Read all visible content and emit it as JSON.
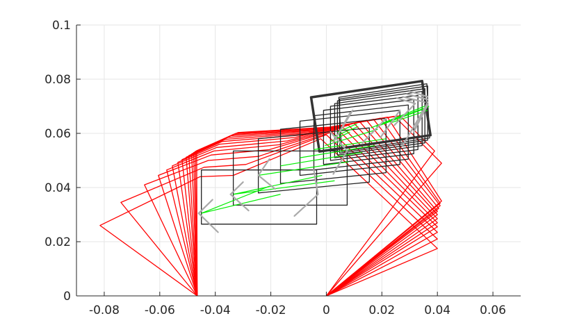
{
  "chart_data": {
    "type": "line",
    "title": "",
    "xlabel": "",
    "ylabel": "",
    "xlim": [
      -0.09,
      0.07
    ],
    "ylim": [
      0,
      0.1
    ],
    "xticks": [
      -0.08,
      -0.06,
      -0.04,
      -0.02,
      0,
      0.02,
      0.04,
      0.06
    ],
    "xtick_labels": [
      "-0.08",
      "-0.06",
      "-0.04",
      "-0.02",
      "0",
      "0.02",
      "0.04",
      "0.06"
    ],
    "yticks": [
      0,
      0.02,
      0.04,
      0.06,
      0.08,
      0.1
    ],
    "ytick_labels": [
      "0",
      "0.02",
      "0.04",
      "0.06",
      "0.08",
      "0.1"
    ],
    "grid": true,
    "colors": {
      "linkage": "#ff0000",
      "box": "#222222",
      "box_final": "#333333",
      "velocity_vector": "#00ee00",
      "direction_marker": "#aaaaaa",
      "axes": "#262626",
      "grid": "#e6e6e6"
    },
    "series": [
      {
        "kind": "linkage",
        "frames": [
          [
            [
              -0.0465,
              0
            ],
            [
              -0.0815,
              0.026
            ],
            [
              -0.0455,
              0.044
            ],
            [
              -0.0335,
              0.0445
            ],
            [
              -0.002,
              0.058
            ],
            [
              0.04,
              0.0175
            ],
            [
              0,
              0
            ]
          ],
          [
            [
              -0.0465,
              0
            ],
            [
              -0.074,
              0.0345
            ],
            [
              -0.044,
              0.0475
            ],
            [
              -0.029,
              0.0485
            ],
            [
              0.0,
              0.0595
            ],
            [
              0.04,
              0.021
            ],
            [
              0,
              0
            ]
          ],
          [
            [
              -0.0465,
              0
            ],
            [
              -0.0655,
              0.041
            ],
            [
              -0.0425,
              0.05
            ],
            [
              -0.0245,
              0.0515
            ],
            [
              0.002,
              0.0605
            ],
            [
              0.04,
              0.0235
            ],
            [
              0,
              0
            ]
          ],
          [
            [
              -0.0465,
              0
            ],
            [
              -0.0605,
              0.0445
            ],
            [
              -0.0415,
              0.052
            ],
            [
              -0.0205,
              0.054
            ],
            [
              0.004,
              0.0615
            ],
            [
              0.04,
              0.0255
            ],
            [
              0,
              0
            ]
          ],
          [
            [
              -0.0465,
              0
            ],
            [
              -0.0575,
              0.0465
            ],
            [
              -0.0405,
              0.0535
            ],
            [
              -0.017,
              0.0558
            ],
            [
              0.006,
              0.0622
            ],
            [
              0.04,
              0.027
            ],
            [
              0,
              0
            ]
          ],
          [
            [
              -0.0465,
              0
            ],
            [
              -0.0555,
              0.048
            ],
            [
              -0.0395,
              0.0548
            ],
            [
              -0.014,
              0.0572
            ],
            [
              0.008,
              0.063
            ],
            [
              0.04,
              0.0285
            ],
            [
              0,
              0
            ]
          ],
          [
            [
              -0.0465,
              0
            ],
            [
              -0.0535,
              0.0493
            ],
            [
              -0.0385,
              0.056
            ],
            [
              -0.0112,
              0.0585
            ],
            [
              0.01,
              0.0637
            ],
            [
              0.04,
              0.03
            ],
            [
              0,
              0
            ]
          ],
          [
            [
              -0.0465,
              0
            ],
            [
              -0.052,
              0.0503
            ],
            [
              -0.0375,
              0.057
            ],
            [
              -0.0088,
              0.0594
            ],
            [
              0.012,
              0.0643
            ],
            [
              0.04,
              0.0312
            ],
            [
              0,
              0
            ]
          ],
          [
            [
              -0.0465,
              0
            ],
            [
              -0.0505,
              0.0512
            ],
            [
              -0.0365,
              0.0578
            ],
            [
              -0.0065,
              0.0601
            ],
            [
              0.0145,
              0.0648
            ],
            [
              0.0405,
              0.0323
            ],
            [
              0,
              0
            ]
          ],
          [
            [
              -0.0465,
              0
            ],
            [
              -0.0495,
              0.0518
            ],
            [
              -0.0355,
              0.0585
            ],
            [
              -0.0045,
              0.0607
            ],
            [
              0.017,
              0.0652
            ],
            [
              0.041,
              0.0333
            ],
            [
              0,
              0
            ]
          ],
          [
            [
              -0.0465,
              0
            ],
            [
              -0.0485,
              0.0524
            ],
            [
              -0.0345,
              0.0591
            ],
            [
              -0.0028,
              0.0612
            ],
            [
              0.0195,
              0.0656
            ],
            [
              0.041,
              0.0342
            ],
            [
              0,
              0
            ]
          ],
          [
            [
              -0.0465,
              0
            ],
            [
              -0.0478,
              0.0529
            ],
            [
              -0.0335,
              0.0596
            ],
            [
              -0.0013,
              0.0616
            ],
            [
              0.022,
              0.066
            ],
            [
              0.0415,
              0.035
            ],
            [
              0,
              0
            ]
          ],
          [
            [
              -0.0465,
              0
            ],
            [
              -0.0472,
              0.0533
            ],
            [
              -0.0325,
              0.06
            ],
            [
              0.0,
              0.062
            ],
            [
              0.0245,
              0.0663
            ],
            [
              0.0415,
              0.049
            ],
            [
              0,
              0
            ]
          ],
          [
            [
              -0.0465,
              0
            ],
            [
              -0.0467,
              0.0536
            ],
            [
              -0.0318,
              0.0603
            ],
            [
              0.001,
              0.0623
            ],
            [
              0.0265,
              0.0665
            ],
            [
              0.039,
              0.0535
            ],
            [
              0,
              0
            ]
          ]
        ]
      },
      {
        "kind": "box",
        "frames": [
          [
            [
              -0.045,
              0.0265
            ],
            [
              -0.0035,
              0.0265
            ],
            [
              -0.0035,
              0.0465
            ],
            [
              -0.045,
              0.0465
            ]
          ],
          [
            [
              -0.0335,
              0.0335
            ],
            [
              0.0075,
              0.0335
            ],
            [
              0.0075,
              0.0535
            ],
            [
              -0.0335,
              0.0535
            ]
          ],
          [
            [
              -0.0245,
              0.038
            ],
            [
              0.0155,
              0.042
            ],
            [
              0.0155,
              0.062
            ],
            [
              -0.0245,
              0.058
            ]
          ],
          [
            [
              -0.0165,
              0.0415
            ],
            [
              0.0215,
              0.0455
            ],
            [
              0.0215,
              0.0655
            ],
            [
              -0.0165,
              0.0615
            ]
          ],
          [
            [
              -0.0095,
              0.0445
            ],
            [
              0.0265,
              0.0485
            ],
            [
              0.0265,
              0.0685
            ],
            [
              -0.0095,
              0.0645
            ]
          ],
          [
            [
              -0.0045,
              0.0465
            ],
            [
              0.0295,
              0.0505
            ],
            [
              0.0295,
              0.0705
            ],
            [
              -0.0045,
              0.0665
            ]
          ],
          [
            [
              -0.001,
              0.0485
            ],
            [
              0.0315,
              0.0525
            ],
            [
              0.0315,
              0.0725
            ],
            [
              -0.001,
              0.0685
            ]
          ],
          [
            [
              0.0015,
              0.05
            ],
            [
              0.033,
              0.054
            ],
            [
              0.033,
              0.074
            ],
            [
              0.0015,
              0.07
            ]
          ],
          [
            [
              0.003,
              0.051
            ],
            [
              0.0345,
              0.0555
            ],
            [
              0.0345,
              0.0755
            ],
            [
              0.003,
              0.071
            ]
          ],
          [
            [
              0.004,
              0.052
            ],
            [
              0.0355,
              0.0565
            ],
            [
              0.0355,
              0.0765
            ],
            [
              0.004,
              0.072
            ]
          ],
          [
            [
              0.0048,
              0.0527
            ],
            [
              0.0365,
              0.0575
            ],
            [
              0.0365,
              0.0775
            ],
            [
              0.0048,
              0.0727
            ]
          ],
          [
            [
              0.0055,
              0.0533
            ],
            [
              0.0372,
              0.0583
            ],
            [
              0.0362,
              0.0783
            ],
            [
              0.0045,
              0.0733
            ]
          ],
          [
            [
              -0.0025,
              0.0533
            ],
            [
              0.0375,
              0.0593
            ],
            [
              0.0345,
              0.0793
            ],
            [
              -0.0055,
              0.0733
            ]
          ]
        ]
      },
      {
        "kind": "velocity_vectors",
        "segments": [
          [
            [
              -0.045,
              0.0305
            ],
            [
              -0.0205,
              0.0405
            ]
          ],
          [
            [
              -0.045,
              0.0305
            ],
            [
              -0.0165,
              0.0375
            ]
          ],
          [
            [
              -0.0335,
              0.0375
            ],
            [
              -0.0015,
              0.0445
            ]
          ],
          [
            [
              -0.0335,
              0.0375
            ],
            [
              0.003,
              0.0425
            ]
          ],
          [
            [
              -0.0245,
              0.0445
            ],
            [
              0.008,
              0.0495
            ]
          ],
          [
            [
              -0.0165,
              0.048
            ],
            [
              0.013,
              0.053
            ]
          ],
          [
            [
              -0.0095,
              0.051
            ],
            [
              0.0175,
              0.0555
            ]
          ],
          [
            [
              -0.0045,
              0.054
            ],
            [
              0.0215,
              0.058
            ]
          ],
          [
            [
              -0.0005,
              0.0555
            ],
            [
              0.0185,
              0.0615
            ]
          ],
          [
            [
              0.0015,
              0.057
            ],
            [
              0.0085,
              0.0605
            ]
          ],
          [
            [
              0.003,
              0.059
            ],
            [
              0.0115,
              0.0625
            ]
          ],
          [
            [
              0.004,
              0.0605
            ],
            [
              0.011,
              0.0635
            ]
          ],
          [
            [
              0.016,
              0.062
            ],
            [
              0.0365,
              0.0705
            ]
          ],
          [
            [
              0.018,
              0.0625
            ],
            [
              0.0365,
              0.0695
            ]
          ],
          [
            [
              0.02,
              0.0635
            ],
            [
              0.037,
              0.07
            ]
          ],
          [
            [
              0.0235,
              0.064
            ],
            [
              0.0365,
              0.0685
            ]
          ]
        ]
      },
      {
        "kind": "direction_markers",
        "segments": [
          [
            [
              -0.039,
              0.0235
            ],
            [
              -0.046,
              0.0305
            ]
          ],
          [
            [
              -0.041,
              0.0355
            ],
            [
              -0.046,
              0.0305
            ]
          ],
          [
            [
              -0.028,
              0.0315
            ],
            [
              -0.0345,
              0.0375
            ]
          ],
          [
            [
              -0.03,
              0.042
            ],
            [
              -0.0345,
              0.0375
            ]
          ],
          [
            [
              -0.0115,
              0.0295
            ],
            [
              -0.003,
              0.0375
            ]
          ],
          [
            [
              -0.0045,
              0.0465
            ],
            [
              -0.003,
              0.0375
            ]
          ],
          [
            [
              -0.0185,
              0.0395
            ],
            [
              -0.0245,
              0.0445
            ]
          ],
          [
            [
              -0.0205,
              0.0505
            ],
            [
              -0.0245,
              0.0445
            ]
          ],
          [
            [
              0.0025,
              0.045
            ],
            [
              0.0075,
              0.0535
            ]
          ],
          [
            [
              0.0015,
              0.0605
            ],
            [
              0.0075,
              0.0535
            ]
          ],
          [
            [
              0.013,
              0.0565
            ],
            [
              0.0215,
              0.0655
            ]
          ],
          [
            [
              0.0195,
              0.0585
            ],
            [
              0.0265,
              0.0685
            ]
          ],
          [
            [
              0.0245,
              0.063
            ],
            [
              0.032,
              0.071
            ]
          ],
          [
            [
              0.0255,
              0.073
            ],
            [
              0.032,
              0.071
            ]
          ],
          [
            [
              0.0275,
              0.0735
            ],
            [
              0.0355,
              0.0715
            ]
          ],
          [
            [
              0.029,
              0.0745
            ],
            [
              0.0365,
              0.0725
            ]
          ],
          [
            [
              0.03,
              0.0755
            ],
            [
              0.0365,
              0.0735
            ]
          ],
          [
            [
              0.0275,
              0.0555
            ],
            [
              0.0355,
              0.0695
            ]
          ],
          [
            [
              0.0315,
              0.0605
            ],
            [
              0.0365,
              0.0705
            ]
          ],
          [
            [
              0.032,
              0.062
            ],
            [
              0.0365,
              0.0715
            ]
          ],
          [
            [
              0.0025,
              0.0565
            ],
            [
              0.0085,
              0.0675
            ]
          ],
          [
            [
              0.003,
              0.0575
            ],
            [
              0.0095,
              0.0685
            ]
          ]
        ]
      }
    ]
  }
}
